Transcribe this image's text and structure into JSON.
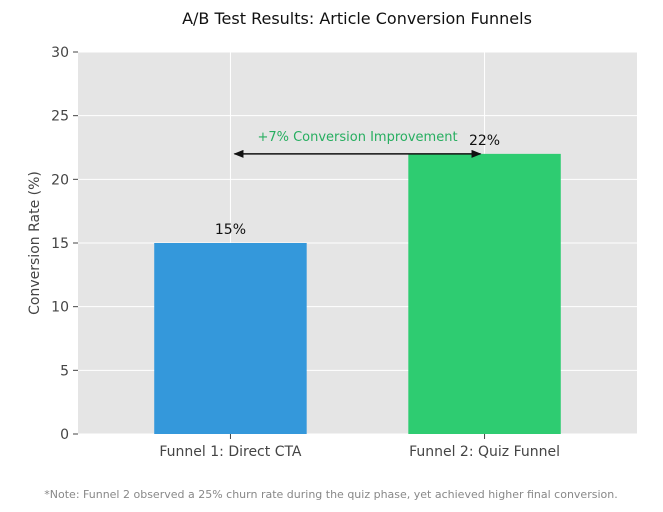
{
  "chart_data": {
    "type": "bar",
    "title": "A/B Test Results: Article Conversion Funnels",
    "xlabel": "",
    "ylabel": "Conversion Rate (%)",
    "ylim": [
      0,
      30
    ],
    "yticks": [
      0,
      5,
      10,
      15,
      20,
      25,
      30
    ],
    "grid": true,
    "categories": [
      "Funnel 1: Direct CTA",
      "Funnel 2: Quiz Funnel"
    ],
    "values": [
      15,
      22
    ],
    "value_labels": [
      "15%",
      "22%"
    ],
    "colors": [
      "#3498db",
      "#2ecc71"
    ],
    "annotation": {
      "text": "+7% Conversion Improvement",
      "from_category": 0,
      "to_category": 1,
      "y": 22,
      "color": "#27ae60"
    },
    "footnote": "*Note: Funnel 2 observed a 25% churn rate during the quiz phase, yet achieved higher final conversion."
  }
}
